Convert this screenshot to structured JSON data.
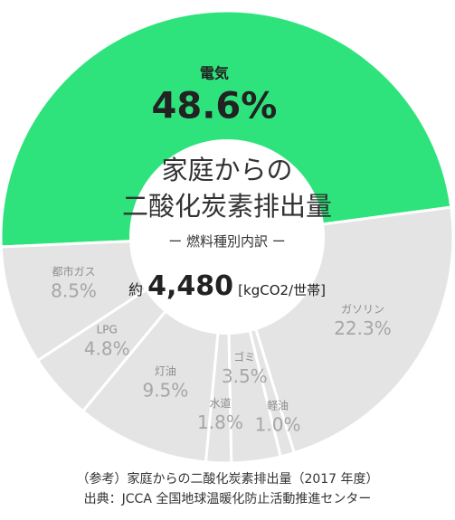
{
  "chart_data": {
    "type": "pie",
    "title": "家庭からの",
    "title_line2": "二酸化炭素排出量",
    "subtitle": "ー 燃料種別内訳 ー",
    "total": {
      "prefix": "約",
      "value": "4,480",
      "unit": "[kgCO2/世帯]"
    },
    "slices": [
      {
        "name": "電気",
        "value": 48.6,
        "label": "48.6%",
        "color": "#2ee37c"
      },
      {
        "name": "ガソリン",
        "value": 22.3,
        "label": "22.3%",
        "color": "#e4e4e4"
      },
      {
        "name": "軽油",
        "value": 1.0,
        "label": "1.0%",
        "color": "#e4e4e4"
      },
      {
        "name": "ゴミ",
        "value": 3.5,
        "label": "3.5%",
        "color": "#e4e4e4"
      },
      {
        "name": "水道",
        "value": 1.8,
        "label": "1.8%",
        "color": "#e4e4e4"
      },
      {
        "name": "灯油",
        "value": 9.5,
        "label": "9.5%",
        "color": "#e4e4e4"
      },
      {
        "name": "LPG",
        "value": 4.8,
        "label": "4.8%",
        "color": "#e4e4e4"
      },
      {
        "name": "都市ガス",
        "value": 8.5,
        "label": "8.5%",
        "color": "#e4e4e4"
      }
    ]
  },
  "footer": {
    "note": "（参考）家庭からの二酸化炭素排出量（2017 年度）",
    "source": "出典：JCCA 全国地球温暖化防止活動推進センター"
  }
}
